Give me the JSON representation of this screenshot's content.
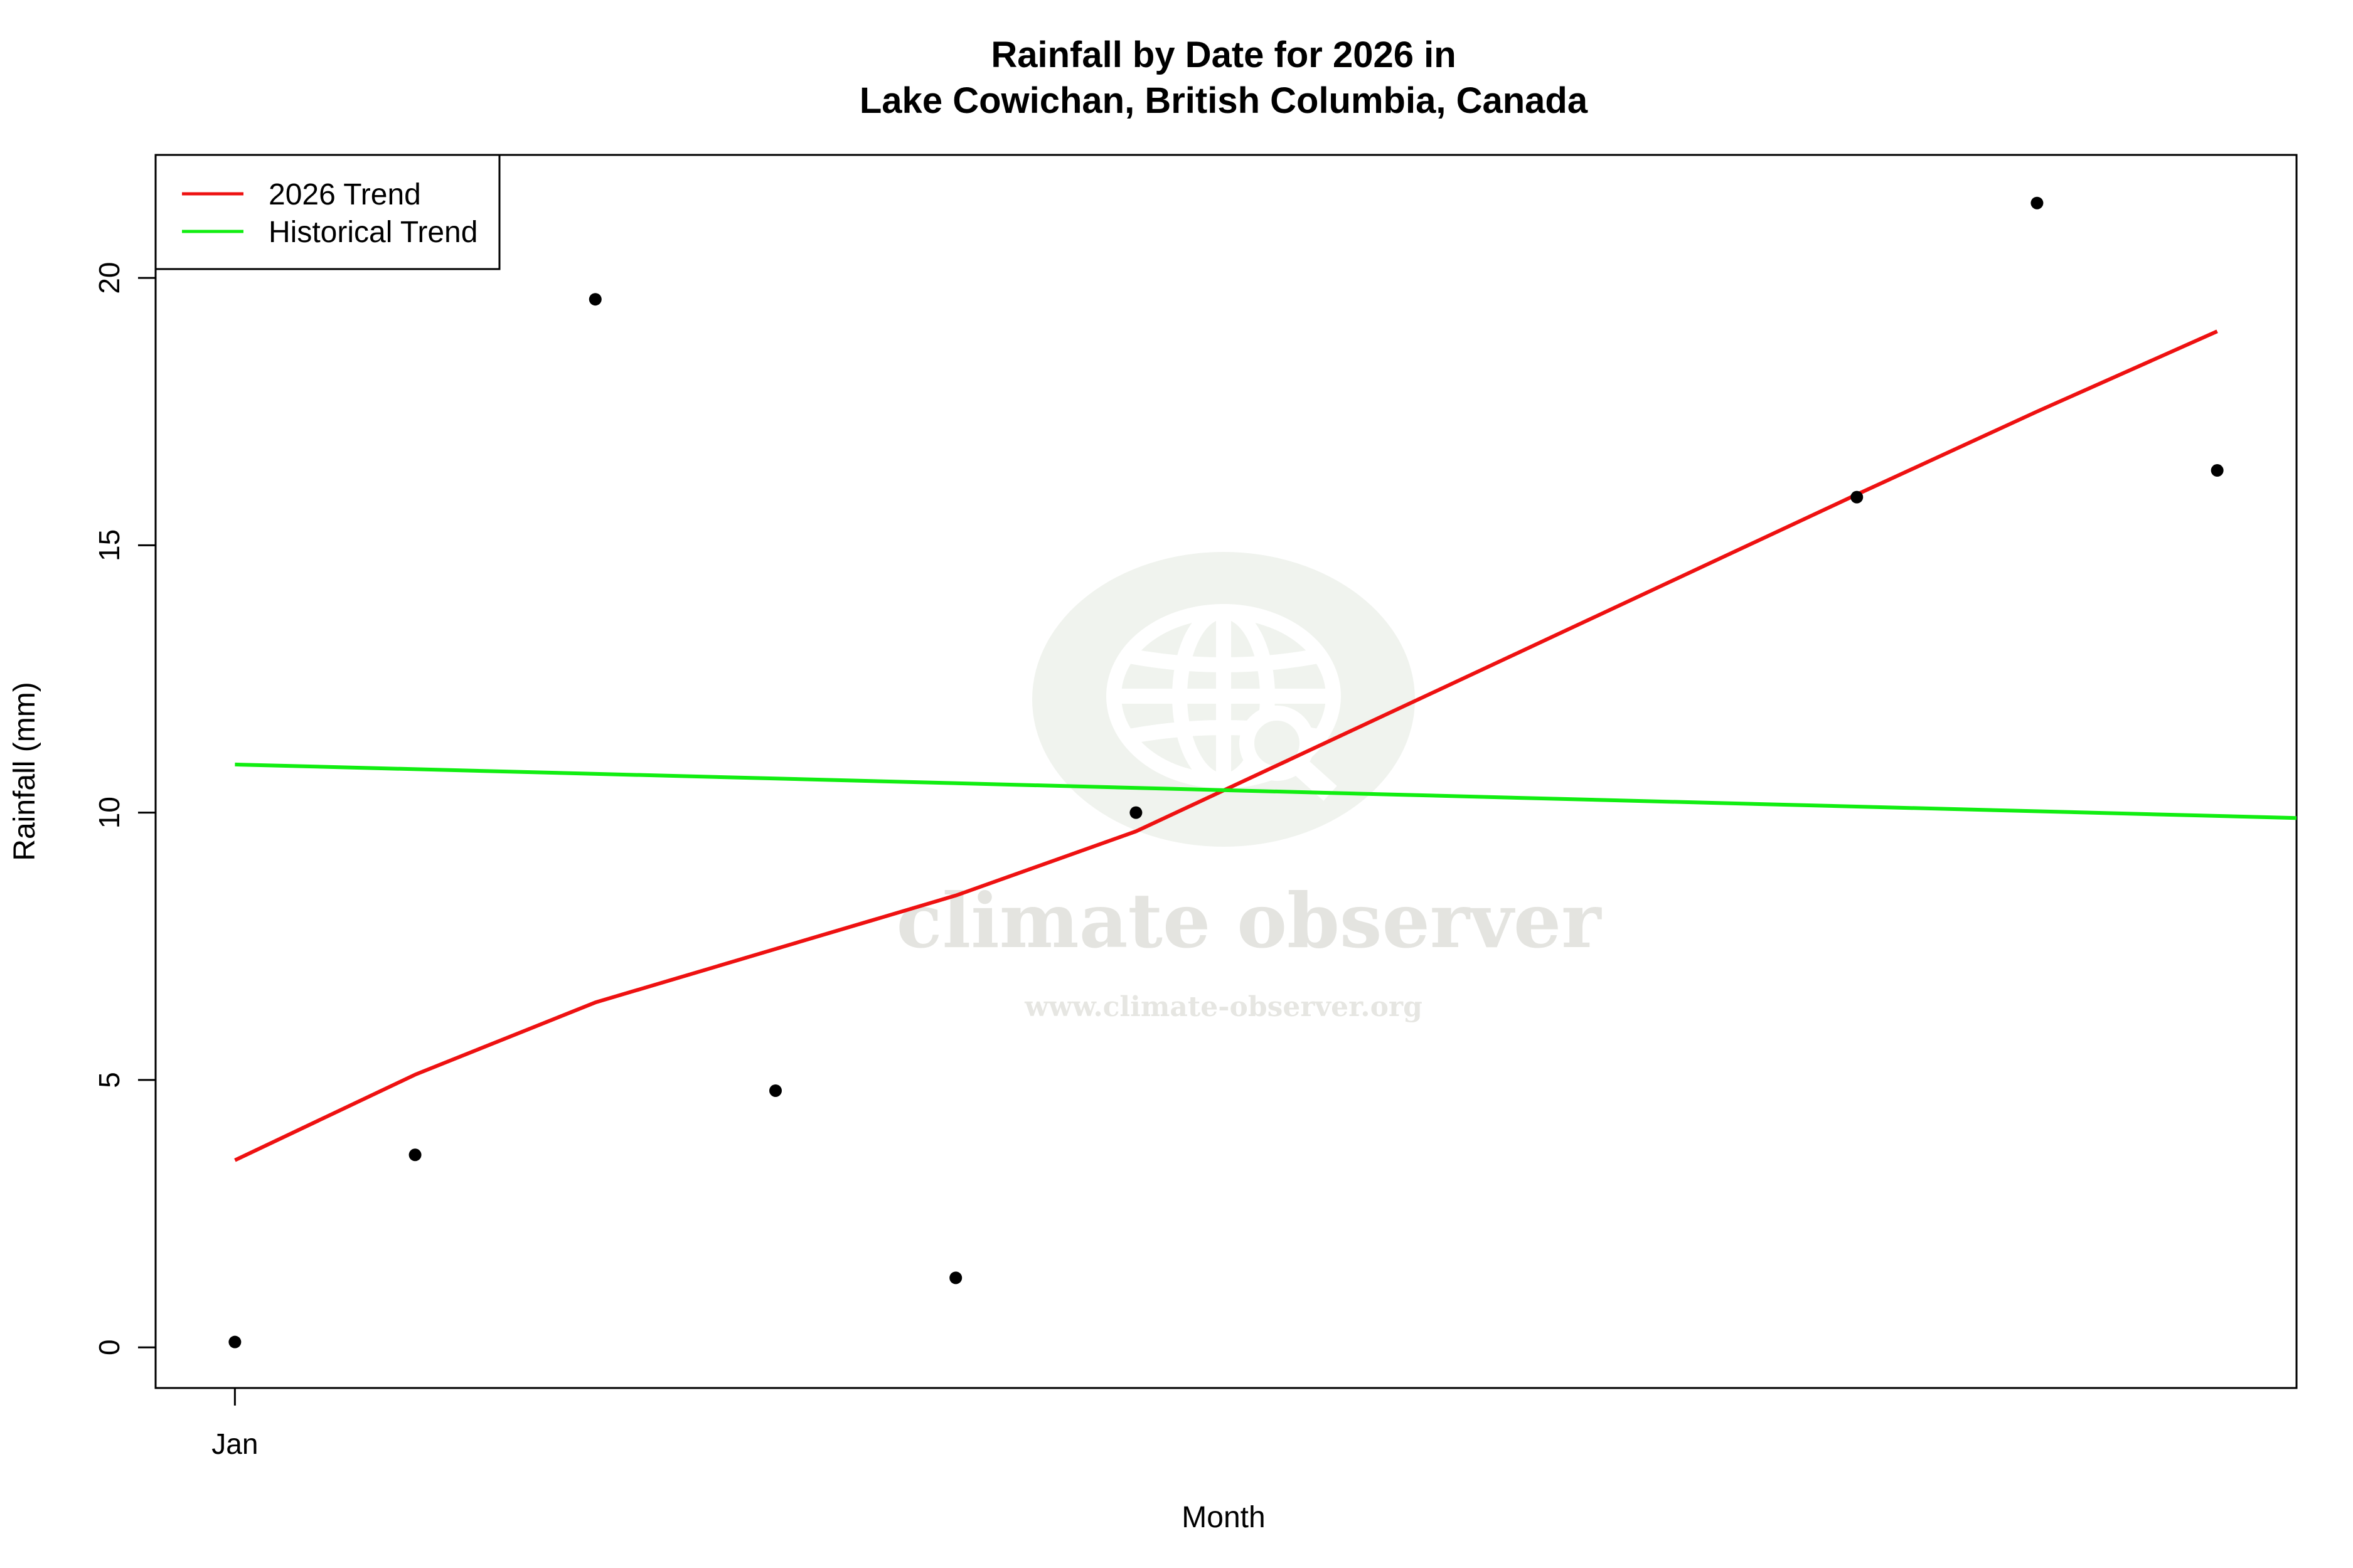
{
  "chart_data": {
    "type": "scatter",
    "title_line1": "Rainfall by Date for 2026 in",
    "title_line2": "Lake Cowichan, British Columbia, Canada",
    "xlabel": "Month",
    "ylabel": "Rainfall (mm)",
    "x_ticks": [
      {
        "value": 1,
        "label": "Jan"
      }
    ],
    "y_ticks": [
      0,
      5,
      10,
      15,
      20
    ],
    "xlim": [
      0.56,
      12.44
    ],
    "ylim": [
      -0.76,
      22.3
    ],
    "points": {
      "x": [
        1,
        2,
        3,
        4,
        5,
        6,
        10,
        11,
        12
      ],
      "y": [
        0.1,
        3.6,
        19.6,
        4.8,
        1.3,
        10.0,
        15.9,
        21.4,
        16.4
      ]
    },
    "series": [
      {
        "name": "2026 Trend",
        "color": "#ee1111",
        "x": [
          1,
          2,
          3,
          4,
          5,
          6,
          10,
          11,
          12
        ],
        "y": [
          3.5,
          5.1,
          6.45,
          7.45,
          8.45,
          9.65,
          15.95,
          17.5,
          19.0
        ]
      },
      {
        "name": "Historical Trend",
        "color": "#11ee11",
        "x": [
          1,
          12.44
        ],
        "y": [
          10.9,
          9.9
        ]
      }
    ],
    "legend_position": "top-left",
    "grid": false,
    "watermark": {
      "name": "climate observer",
      "url": "www.climate-observer.org",
      "icon": "globe-search-icon"
    }
  }
}
